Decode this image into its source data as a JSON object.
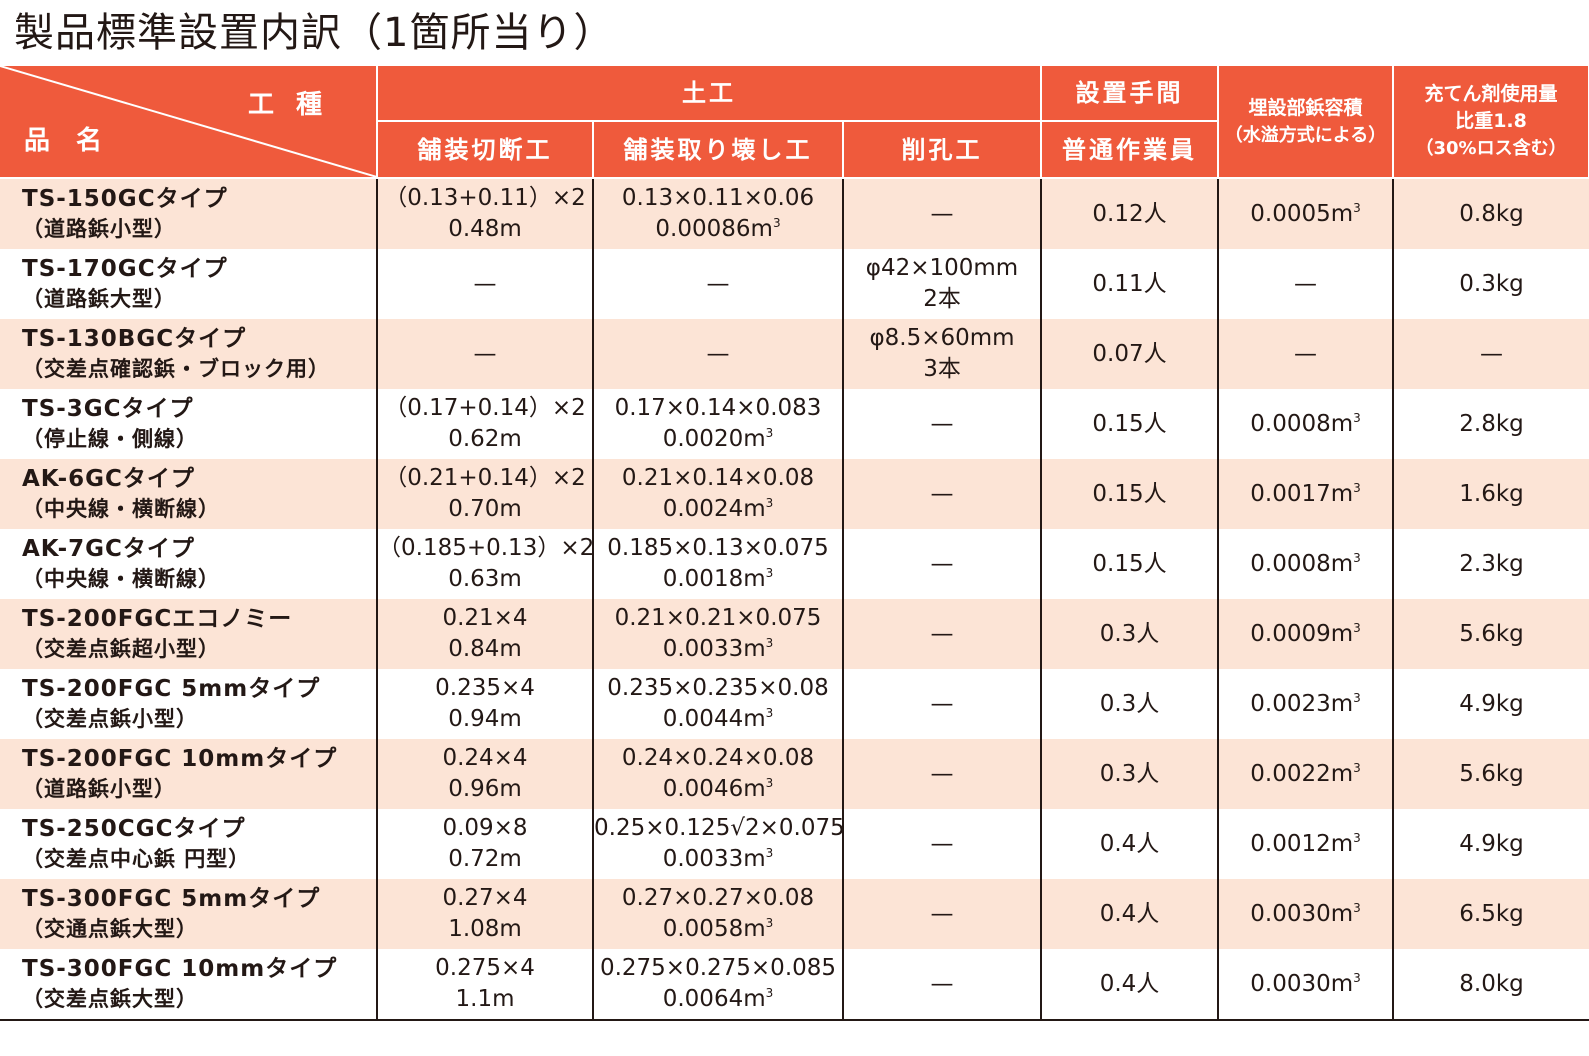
{
  "title": "製品標準設置内訳（1箇所当り）",
  "header": {
    "corner_kind": "工種",
    "corner_name": "品名",
    "group_doko": "土工",
    "group_setchi": "設置手間",
    "col_cut": "舗装切断工",
    "col_break": "舗装取り壊し工",
    "col_drill": "削孔工",
    "col_worker": "普通作業員",
    "col_volume_1": "埋設部鋲容積",
    "col_volume_2": "（水溢方式による）",
    "col_filler_1": "充てん剤使用量",
    "col_filler_2": "比重1.8",
    "col_filler_3": "（30%ロス含む）"
  },
  "rows": [
    {
      "name": "TS-150GCタイプ",
      "sub": "（道路鋲小型）",
      "cut1": "（0.13+0.11）×2",
      "cut2": "0.48m",
      "brk1": "0.13×0.11×0.06",
      "brk2": "0.00086m",
      "brk_sup": "3",
      "drill1": "—",
      "drill2": "",
      "worker": "0.12人",
      "vol": "0.0005m",
      "vol_sup": "3",
      "filler": "0.8kg"
    },
    {
      "name": "TS-170GCタイプ",
      "sub": "（道路鋲大型）",
      "cut1": "—",
      "cut2": "",
      "brk1": "—",
      "brk2": "",
      "brk_sup": "",
      "drill1": "φ42×100mm",
      "drill2": "2本",
      "worker": "0.11人",
      "vol": "—",
      "vol_sup": "",
      "filler": "0.3kg"
    },
    {
      "name": "TS-130BGCタイプ",
      "sub": "（交差点確認鋲・ブロック用）",
      "cut1": "—",
      "cut2": "",
      "brk1": "—",
      "brk2": "",
      "brk_sup": "",
      "drill1": "φ8.5×60mm",
      "drill2": "3本",
      "worker": "0.07人",
      "vol": "—",
      "vol_sup": "",
      "filler": "—"
    },
    {
      "name": "TS-3GCタイプ",
      "sub": "（停止線・側線）",
      "cut1": "（0.17+0.14）×2",
      "cut2": "0.62m",
      "brk1": "0.17×0.14×0.083",
      "brk2": "0.0020m",
      "brk_sup": "3",
      "drill1": "—",
      "drill2": "",
      "worker": "0.15人",
      "vol": "0.0008m",
      "vol_sup": "3",
      "filler": "2.8kg"
    },
    {
      "name": "AK-6GCタイプ",
      "sub": "（中央線・横断線）",
      "cut1": "（0.21+0.14）×2",
      "cut2": "0.70m",
      "brk1": "0.21×0.14×0.08",
      "brk2": "0.0024m",
      "brk_sup": "3",
      "drill1": "—",
      "drill2": "",
      "worker": "0.15人",
      "vol": "0.0017m",
      "vol_sup": "3",
      "filler": "1.6kg"
    },
    {
      "name": "AK-7GCタイプ",
      "sub": "（中央線・横断線）",
      "cut1": "（0.185+0.13）×2",
      "cut2": "0.63m",
      "brk1": "0.185×0.13×0.075",
      "brk2": "0.0018m",
      "brk_sup": "3",
      "drill1": "—",
      "drill2": "",
      "worker": "0.15人",
      "vol": "0.0008m",
      "vol_sup": "3",
      "filler": "2.3kg"
    },
    {
      "name": "TS-200FGCエコノミー",
      "sub": "（交差点鋲超小型）",
      "cut1": "0.21×4",
      "cut2": "0.84m",
      "brk1": "0.21×0.21×0.075",
      "brk2": "0.0033m",
      "brk_sup": "3",
      "drill1": "—",
      "drill2": "",
      "worker": "0.3人",
      "vol": "0.0009m",
      "vol_sup": "3",
      "filler": "5.6kg"
    },
    {
      "name": "TS-200FGC 5mmタイプ",
      "sub": "（交差点鋲小型）",
      "cut1": "0.235×4",
      "cut2": "0.94m",
      "brk1": "0.235×0.235×0.08",
      "brk2": "0.0044m",
      "brk_sup": "3",
      "drill1": "—",
      "drill2": "",
      "worker": "0.3人",
      "vol": "0.0023m",
      "vol_sup": "3",
      "filler": "4.9kg"
    },
    {
      "name": "TS-200FGC 10mmタイプ",
      "sub": "（道路鋲小型）",
      "cut1": "0.24×4",
      "cut2": "0.96m",
      "brk1": "0.24×0.24×0.08",
      "brk2": "0.0046m",
      "brk_sup": "3",
      "drill1": "—",
      "drill2": "",
      "worker": "0.3人",
      "vol": "0.0022m",
      "vol_sup": "3",
      "filler": "5.6kg"
    },
    {
      "name": "TS-250CGCタイプ",
      "sub": "（交差点中心鋲 円型）",
      "cut1": "0.09×8",
      "cut2": "0.72m",
      "brk1": "0.25×0.125√2×0.075",
      "brk2": "0.0033m",
      "brk_sup": "3",
      "drill1": "—",
      "drill2": "",
      "worker": "0.4人",
      "vol": "0.0012m",
      "vol_sup": "3",
      "filler": "4.9kg"
    },
    {
      "name": "TS-300FGC 5mmタイプ",
      "sub": "（交通点鋲大型）",
      "cut1": "0.27×4",
      "cut2": "1.08m",
      "brk1": "0.27×0.27×0.08",
      "brk2": "0.0058m",
      "brk_sup": "3",
      "drill1": "—",
      "drill2": "",
      "worker": "0.4人",
      "vol": "0.0030m",
      "vol_sup": "3",
      "filler": "6.5kg"
    },
    {
      "name": "TS-300FGC 10mmタイプ",
      "sub": "（交差点鋲大型）",
      "cut1": "0.275×4",
      "cut2": "1.1m",
      "brk1": "0.275×0.275×0.085",
      "brk2": "0.0064m",
      "brk_sup": "3",
      "drill1": "—",
      "drill2": "",
      "worker": "0.4人",
      "vol": "0.0030m",
      "vol_sup": "3",
      "filler": "8.0kg"
    }
  ],
  "colors": {
    "header_bg": "#ef5a3c",
    "row_tint": "#fce4d6",
    "text": "#231815"
  }
}
